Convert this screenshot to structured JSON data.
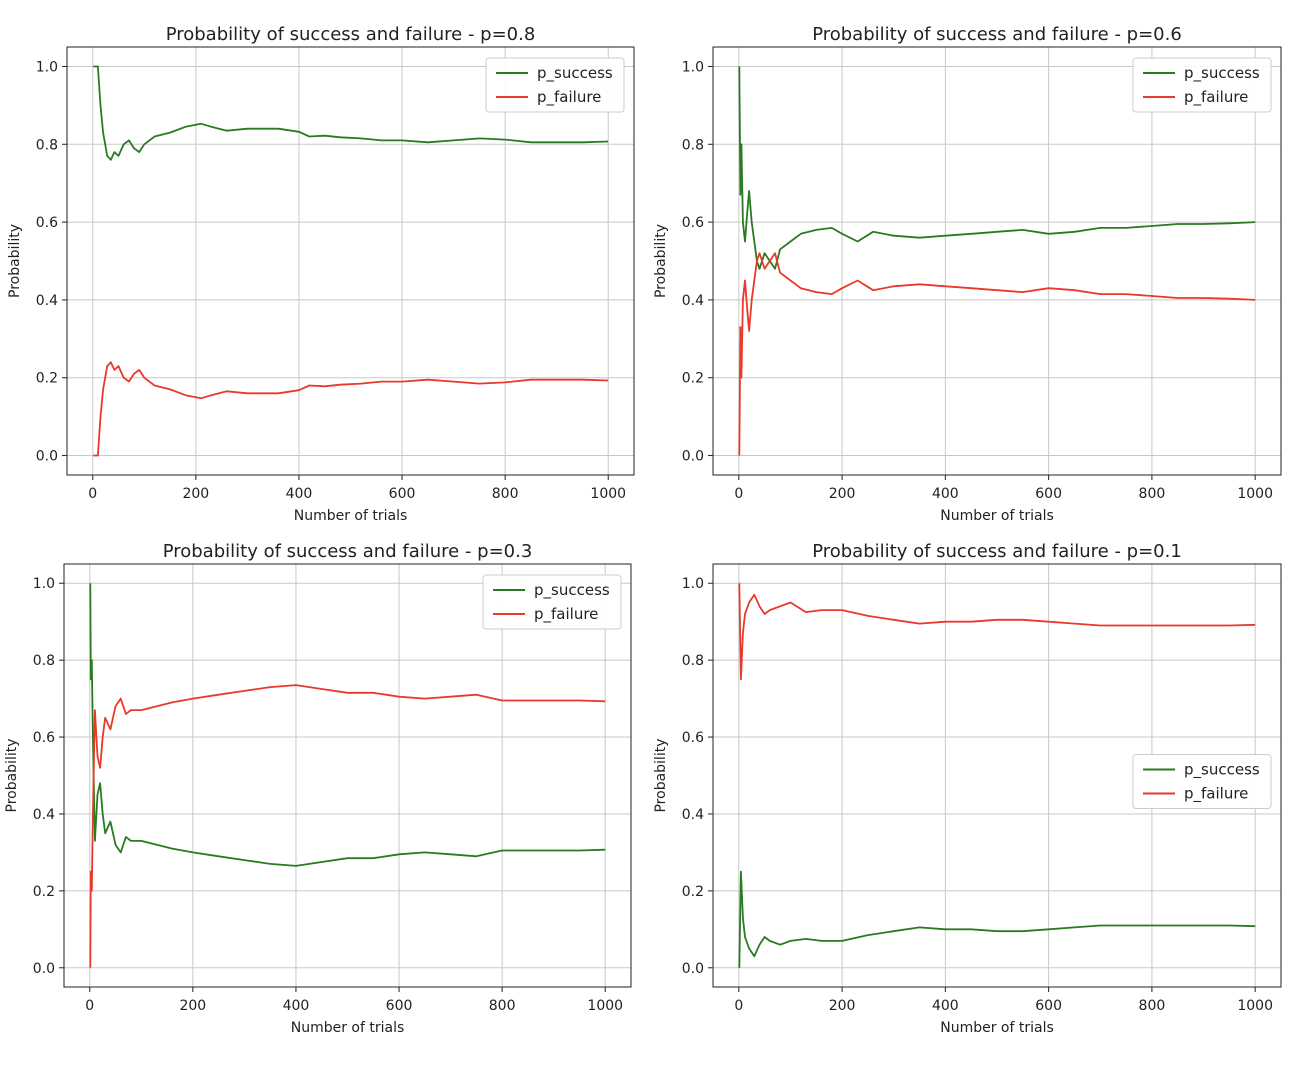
{
  "chart_data": [
    {
      "type": "line",
      "title": "Probability of success and failure - p=0.8",
      "xlabel": "Number of trials",
      "ylabel": "Probability",
      "xlim": [
        -50,
        1050
      ],
      "ylim": [
        -0.05,
        1.05
      ],
      "xticks": [
        0,
        200,
        400,
        600,
        800,
        1000
      ],
      "yticks": [
        0.0,
        0.2,
        0.4,
        0.6,
        0.8,
        1.0
      ],
      "grid": true,
      "legend": "upper right",
      "series": [
        {
          "name": "p_success",
          "color": "#2a7a22",
          "x": [
            1,
            10,
            15,
            20,
            28,
            35,
            42,
            50,
            60,
            70,
            80,
            90,
            100,
            120,
            150,
            180,
            210,
            230,
            260,
            300,
            330,
            360,
            400,
            420,
            450,
            480,
            520,
            560,
            600,
            650,
            700,
            750,
            800,
            850,
            900,
            950,
            1000
          ],
          "y": [
            1.0,
            1.0,
            0.9,
            0.83,
            0.77,
            0.76,
            0.78,
            0.77,
            0.8,
            0.81,
            0.79,
            0.78,
            0.8,
            0.82,
            0.83,
            0.845,
            0.853,
            0.845,
            0.835,
            0.84,
            0.84,
            0.84,
            0.832,
            0.82,
            0.822,
            0.818,
            0.815,
            0.81,
            0.81,
            0.805,
            0.81,
            0.815,
            0.812,
            0.805,
            0.805,
            0.805,
            0.807
          ]
        },
        {
          "name": "p_failure",
          "color": "#e8392a",
          "x": [
            1,
            10,
            15,
            20,
            28,
            35,
            42,
            50,
            60,
            70,
            80,
            90,
            100,
            120,
            150,
            180,
            210,
            230,
            260,
            300,
            330,
            360,
            400,
            420,
            450,
            480,
            520,
            560,
            600,
            650,
            700,
            750,
            800,
            850,
            900,
            950,
            1000
          ],
          "y": [
            0.0,
            0.0,
            0.1,
            0.17,
            0.23,
            0.24,
            0.22,
            0.23,
            0.2,
            0.19,
            0.21,
            0.22,
            0.2,
            0.18,
            0.17,
            0.155,
            0.147,
            0.155,
            0.165,
            0.16,
            0.16,
            0.16,
            0.168,
            0.18,
            0.178,
            0.182,
            0.185,
            0.19,
            0.19,
            0.195,
            0.19,
            0.185,
            0.188,
            0.195,
            0.195,
            0.195,
            0.193
          ]
        }
      ]
    },
    {
      "type": "line",
      "title": "Probability of success and failure - p=0.6",
      "xlabel": "Number of trials",
      "ylabel": "Probability",
      "xlim": [
        -50,
        1050
      ],
      "ylim": [
        -0.05,
        1.05
      ],
      "xticks": [
        0,
        200,
        400,
        600,
        800,
        1000
      ],
      "yticks": [
        0.0,
        0.2,
        0.4,
        0.6,
        0.8,
        1.0
      ],
      "grid": true,
      "legend": "upper right",
      "series": [
        {
          "name": "p_success",
          "color": "#2a7a22",
          "x": [
            1,
            3,
            5,
            8,
            12,
            16,
            20,
            25,
            30,
            35,
            40,
            50,
            60,
            70,
            80,
            100,
            120,
            150,
            180,
            200,
            230,
            260,
            300,
            350,
            400,
            450,
            500,
            550,
            600,
            650,
            700,
            750,
            800,
            850,
            900,
            950,
            1000
          ],
          "y": [
            1.0,
            0.67,
            0.8,
            0.6,
            0.55,
            0.62,
            0.68,
            0.6,
            0.55,
            0.5,
            0.48,
            0.52,
            0.5,
            0.48,
            0.53,
            0.55,
            0.57,
            0.58,
            0.585,
            0.57,
            0.55,
            0.575,
            0.565,
            0.56,
            0.565,
            0.57,
            0.575,
            0.58,
            0.57,
            0.575,
            0.585,
            0.585,
            0.59,
            0.595,
            0.595,
            0.597,
            0.6
          ]
        },
        {
          "name": "p_failure",
          "color": "#e8392a",
          "x": [
            1,
            3,
            5,
            8,
            12,
            16,
            20,
            25,
            30,
            35,
            40,
            50,
            60,
            70,
            80,
            100,
            120,
            150,
            180,
            200,
            230,
            260,
            300,
            350,
            400,
            450,
            500,
            550,
            600,
            650,
            700,
            750,
            800,
            850,
            900,
            950,
            1000
          ],
          "y": [
            0.0,
            0.33,
            0.2,
            0.4,
            0.45,
            0.38,
            0.32,
            0.4,
            0.45,
            0.5,
            0.52,
            0.48,
            0.5,
            0.52,
            0.47,
            0.45,
            0.43,
            0.42,
            0.415,
            0.43,
            0.45,
            0.425,
            0.435,
            0.44,
            0.435,
            0.43,
            0.425,
            0.42,
            0.43,
            0.425,
            0.415,
            0.415,
            0.41,
            0.405,
            0.405,
            0.403,
            0.4
          ]
        }
      ]
    },
    {
      "type": "line",
      "title": "Probability of success and failure - p=0.3",
      "xlabel": "Number of trials",
      "ylabel": "Probability",
      "xlim": [
        -50,
        1050
      ],
      "ylim": [
        -0.05,
        1.05
      ],
      "xticks": [
        0,
        200,
        400,
        600,
        800,
        1000
      ],
      "yticks": [
        0.0,
        0.2,
        0.4,
        0.6,
        0.8,
        1.0
      ],
      "grid": true,
      "legend": "upper right",
      "series": [
        {
          "name": "p_success",
          "color": "#2a7a22",
          "x": [
            1,
            2,
            4,
            6,
            10,
            15,
            20,
            25,
            30,
            40,
            50,
            60,
            70,
            80,
            100,
            130,
            160,
            200,
            250,
            300,
            350,
            400,
            450,
            500,
            550,
            600,
            650,
            700,
            750,
            800,
            850,
            900,
            950,
            1000
          ],
          "y": [
            1.0,
            0.75,
            0.8,
            0.6,
            0.33,
            0.45,
            0.48,
            0.4,
            0.35,
            0.38,
            0.32,
            0.3,
            0.34,
            0.33,
            0.33,
            0.32,
            0.31,
            0.3,
            0.29,
            0.28,
            0.27,
            0.265,
            0.275,
            0.285,
            0.285,
            0.295,
            0.3,
            0.295,
            0.29,
            0.305,
            0.305,
            0.305,
            0.305,
            0.307
          ]
        },
        {
          "name": "p_failure",
          "color": "#e8392a",
          "x": [
            1,
            2,
            4,
            6,
            10,
            15,
            20,
            25,
            30,
            40,
            50,
            60,
            70,
            80,
            100,
            130,
            160,
            200,
            250,
            300,
            350,
            400,
            450,
            500,
            550,
            600,
            650,
            700,
            750,
            800,
            850,
            900,
            950,
            1000
          ],
          "y": [
            0.0,
            0.25,
            0.2,
            0.4,
            0.67,
            0.55,
            0.52,
            0.6,
            0.65,
            0.62,
            0.68,
            0.7,
            0.66,
            0.67,
            0.67,
            0.68,
            0.69,
            0.7,
            0.71,
            0.72,
            0.73,
            0.735,
            0.725,
            0.715,
            0.715,
            0.705,
            0.7,
            0.705,
            0.71,
            0.695,
            0.695,
            0.695,
            0.695,
            0.693
          ]
        }
      ]
    },
    {
      "type": "line",
      "title": "Probability of success and failure - p=0.1",
      "xlabel": "Number of trials",
      "ylabel": "Probability",
      "xlim": [
        -50,
        1050
      ],
      "ylim": [
        -0.05,
        1.05
      ],
      "xticks": [
        0,
        200,
        400,
        600,
        800,
        1000
      ],
      "yticks": [
        0.0,
        0.2,
        0.4,
        0.6,
        0.8,
        1.0
      ],
      "grid": true,
      "legend": "center right",
      "series": [
        {
          "name": "p_success",
          "color": "#2a7a22",
          "x": [
            1,
            4,
            8,
            12,
            20,
            30,
            40,
            50,
            60,
            80,
            100,
            130,
            160,
            200,
            250,
            300,
            350,
            400,
            450,
            500,
            550,
            600,
            650,
            700,
            750,
            800,
            850,
            900,
            950,
            1000
          ],
          "y": [
            0.0,
            0.25,
            0.13,
            0.08,
            0.05,
            0.03,
            0.06,
            0.08,
            0.07,
            0.06,
            0.07,
            0.075,
            0.07,
            0.07,
            0.085,
            0.095,
            0.105,
            0.1,
            0.1,
            0.095,
            0.095,
            0.1,
            0.105,
            0.11,
            0.11,
            0.11,
            0.11,
            0.11,
            0.11,
            0.108
          ]
        },
        {
          "name": "p_failure",
          "color": "#e8392a",
          "x": [
            1,
            4,
            8,
            12,
            20,
            30,
            40,
            50,
            60,
            80,
            100,
            130,
            160,
            200,
            250,
            300,
            350,
            400,
            450,
            500,
            550,
            600,
            650,
            700,
            750,
            800,
            850,
            900,
            950,
            1000
          ],
          "y": [
            1.0,
            0.75,
            0.87,
            0.92,
            0.95,
            0.97,
            0.94,
            0.92,
            0.93,
            0.94,
            0.95,
            0.925,
            0.93,
            0.93,
            0.915,
            0.905,
            0.895,
            0.9,
            0.9,
            0.905,
            0.905,
            0.9,
            0.895,
            0.89,
            0.89,
            0.89,
            0.89,
            0.89,
            0.89,
            0.892
          ]
        }
      ]
    }
  ]
}
